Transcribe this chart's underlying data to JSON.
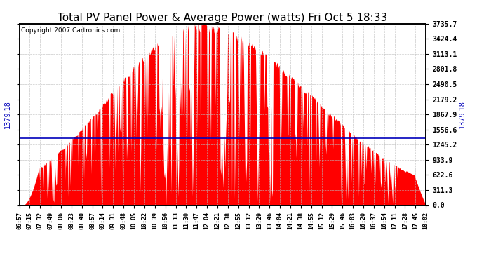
{
  "title": "Total PV Panel Power & Average Power (watts) Fri Oct 5 18:33",
  "copyright": "Copyright 2007 Cartronics.com",
  "avg_power": 1379.18,
  "ymax": 3735.7,
  "yticks": [
    0.0,
    311.3,
    622.6,
    933.9,
    1245.2,
    1556.6,
    1867.9,
    2179.2,
    2490.5,
    2801.8,
    3113.1,
    3424.4,
    3735.7
  ],
  "bar_color": "#FF0000",
  "line_color": "#0000BB",
  "bg_color": "#FFFFFF",
  "grid_color": "#BBBBBB",
  "title_fontsize": 11,
  "copyright_fontsize": 6.5,
  "x_labels": [
    "06:57",
    "07:15",
    "07:32",
    "07:49",
    "08:06",
    "08:23",
    "08:40",
    "08:57",
    "09:14",
    "09:31",
    "09:48",
    "10:05",
    "10:22",
    "10:39",
    "10:56",
    "11:13",
    "11:30",
    "11:47",
    "12:04",
    "12:21",
    "12:38",
    "12:55",
    "13:12",
    "13:29",
    "13:46",
    "14:04",
    "14:21",
    "14:38",
    "14:55",
    "15:12",
    "15:29",
    "15:46",
    "16:03",
    "16:20",
    "16:37",
    "16:54",
    "17:11",
    "17:28",
    "17:45",
    "18:02"
  ]
}
